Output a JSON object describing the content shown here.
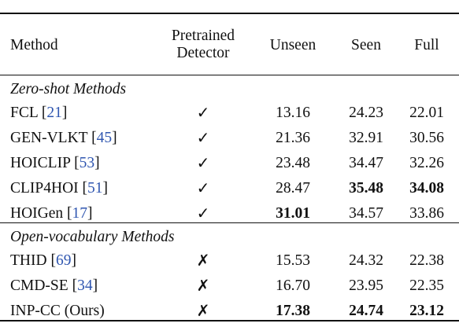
{
  "header": {
    "method": "Method",
    "detector_line1": "Pretrained",
    "detector_line2": "Detector",
    "unseen": "Unseen",
    "seen": "Seen",
    "full": "Full"
  },
  "sections": [
    {
      "title": "Zero-shot Methods",
      "rows": [
        {
          "name": "FCL",
          "cite": "21",
          "detector": "✓",
          "unseen": "13.16",
          "seen": "24.23",
          "full": "22.01",
          "bold": []
        },
        {
          "name": "GEN-VLKT",
          "cite": "45",
          "detector": "✓",
          "unseen": "21.36",
          "seen": "32.91",
          "full": "30.56",
          "bold": []
        },
        {
          "name": "HOICLIP",
          "cite": "53",
          "detector": "✓",
          "unseen": "23.48",
          "seen": "34.47",
          "full": "32.26",
          "bold": []
        },
        {
          "name": "CLIP4HOI",
          "cite": "51",
          "detector": "✓",
          "unseen": "28.47",
          "seen": "35.48",
          "full": "34.08",
          "bold": [
            "seen",
            "full"
          ]
        },
        {
          "name": "HOIGen",
          "cite": "17",
          "detector": "✓",
          "unseen": "31.01",
          "seen": "34.57",
          "full": "33.86",
          "bold": [
            "unseen"
          ]
        }
      ]
    },
    {
      "title": "Open-vocabulary Methods",
      "rows": [
        {
          "name": "THID",
          "cite": "69",
          "detector": "✗",
          "unseen": "15.53",
          "seen": "24.32",
          "full": "22.38",
          "bold": []
        },
        {
          "name": "CMD-SE",
          "cite": "34",
          "detector": "✗",
          "unseen": "16.70",
          "seen": "23.95",
          "full": "22.35",
          "bold": []
        },
        {
          "name": "INP-CC (Ours)",
          "cite": "",
          "detector": "✗",
          "unseen": "17.38",
          "seen": "24.74",
          "full": "23.12",
          "bold": [
            "unseen",
            "seen",
            "full"
          ]
        }
      ]
    }
  ]
}
